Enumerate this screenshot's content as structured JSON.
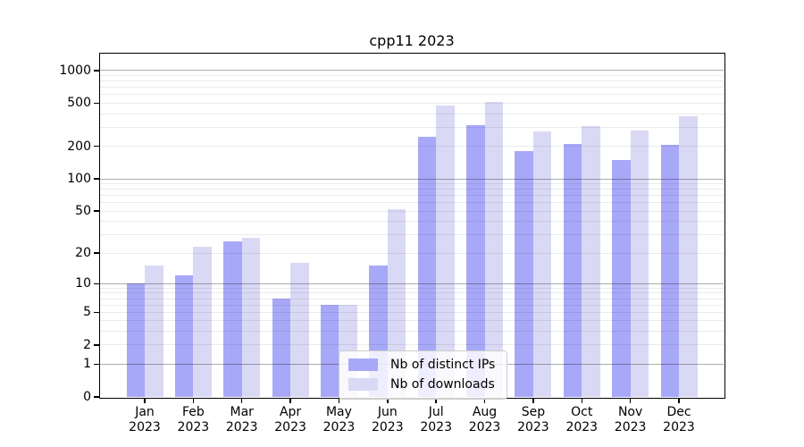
{
  "chart_data": {
    "type": "bar",
    "title": "cpp11 2023",
    "categories": [
      "Jan 2023",
      "Feb 2023",
      "Mar 2023",
      "Apr 2023",
      "May 2023",
      "Jun 2023",
      "Jul 2023",
      "Aug 2023",
      "Sep 2023",
      "Oct 2023",
      "Nov 2023",
      "Dec 2023"
    ],
    "series": [
      {
        "name": "Nb of distinct IPs",
        "color": "#a8a8f8",
        "values": [
          10,
          12,
          26,
          7,
          6,
          15,
          245,
          315,
          180,
          210,
          150,
          205
        ]
      },
      {
        "name": "Nb of downloads",
        "color": "#d9d9f6",
        "values": [
          15,
          23,
          28,
          16,
          6,
          52,
          475,
          515,
          275,
          310,
          280,
          380
        ]
      }
    ],
    "xlabel": "",
    "ylabel": "",
    "yscale": "log1p",
    "yticks": [
      0,
      1,
      2,
      5,
      10,
      20,
      50,
      100,
      200,
      500,
      1000
    ],
    "ylim": [
      0,
      1430
    ],
    "grid": "on",
    "legend_position": "lower center",
    "colors": {
      "major_grid": "#b0b0b0",
      "minor_grid": "#ebebeb",
      "axis": "#000000",
      "background": "#ffffff"
    }
  }
}
